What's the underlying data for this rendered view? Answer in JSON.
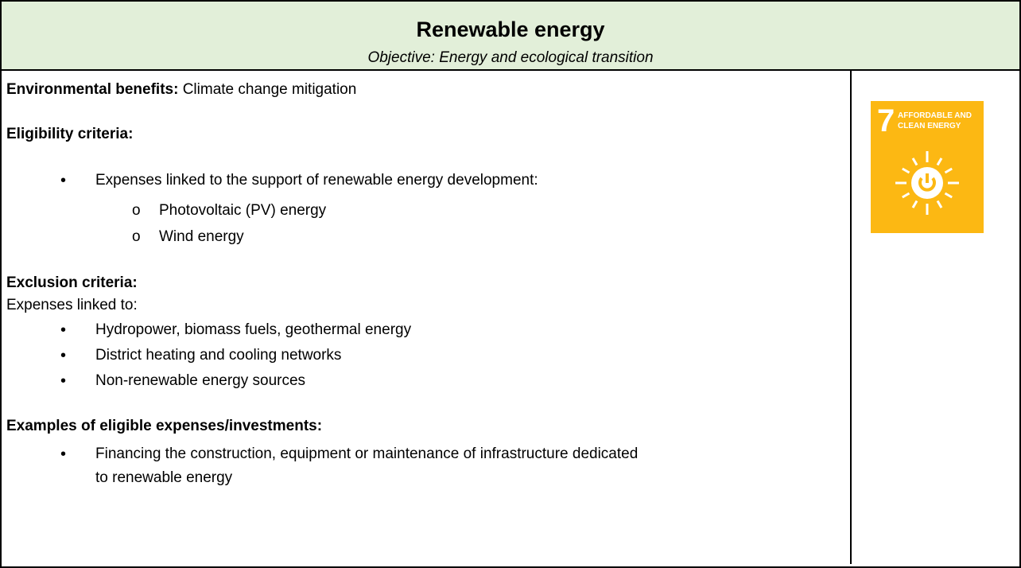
{
  "header": {
    "title": "Renewable energy",
    "subtitle": "Objective: Energy and ecological transition"
  },
  "environmental_benefits": {
    "label": "Environmental benefits:",
    "text": " Climate change mitigation"
  },
  "eligibility": {
    "label": "Eligibility criteria:",
    "items": [
      {
        "text": "Expenses linked to the support of renewable energy development:",
        "subitems": [
          "Photovoltaic (PV) energy",
          "Wind energy"
        ]
      }
    ]
  },
  "exclusion": {
    "label": "Exclusion criteria:",
    "intro": "Expenses linked to:",
    "items": [
      "Hydropower, biomass fuels, geothermal energy",
      "District heating and cooling networks",
      "Non-renewable energy sources"
    ]
  },
  "examples": {
    "label": "Examples of eligible expenses/investments:",
    "items": [
      "Financing the construction, equipment or maintenance of infrastructure dedicated to renewable energy"
    ]
  },
  "icon": {
    "number": "7",
    "label_lines": [
      "AFFORDABLE AND",
      "CLEAN ENERGY"
    ]
  }
}
